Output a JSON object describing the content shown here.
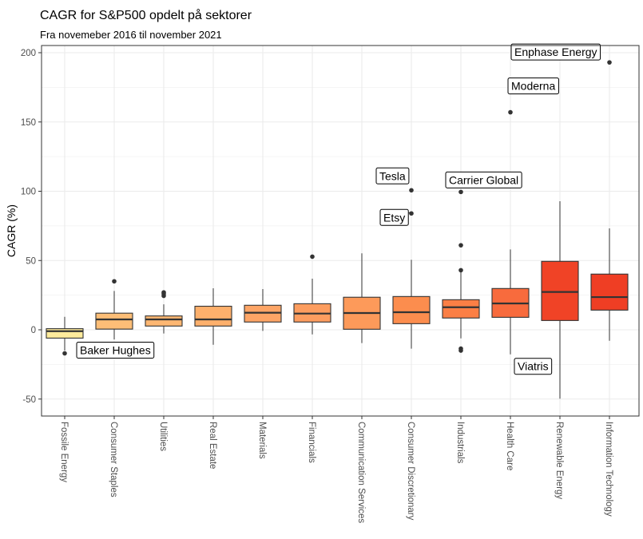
{
  "chart_data": {
    "type": "boxplot",
    "title": "CAGR for S&P500 opdelt på sektorer",
    "subtitle": "Fra novemeber 2016 til november 2021",
    "xlabel": "",
    "ylabel": "CAGR (%)",
    "ylim": [
      -60,
      208
    ],
    "yticks": [
      -50,
      0,
      50,
      100,
      150,
      200
    ],
    "grid": true,
    "categories": [
      "Fossile Energy",
      "Consumer Staples",
      "Utilities",
      "Real Estate",
      "Materials",
      "Financials",
      "Communication Services",
      "Consumer Discretionary",
      "Industrials",
      "Health Care",
      "Renewable Energy",
      "Information Technology"
    ],
    "colors": [
      "#FFEB9C",
      "#FDBE77",
      "#FDB772",
      "#FDB06C",
      "#FDA566",
      "#FD9D5F",
      "#FD9A5A",
      "#FC8D4E",
      "#FB7F45",
      "#F86B3D",
      "#F04326",
      "#EF3E24"
    ],
    "boxes": [
      {
        "lower": -15,
        "q1": -6,
        "median": -1,
        "q3": 0.8,
        "upper": 9.4,
        "outliers": [
          -17
        ]
      },
      {
        "lower": -7,
        "q1": 0.5,
        "median": 7.5,
        "q3": 12,
        "upper": 28,
        "outliers": [
          35
        ]
      },
      {
        "lower": -2.7,
        "q1": 2.7,
        "median": 7.5,
        "q3": 10,
        "upper": 18.4,
        "outliers": [
          24.5,
          26,
          27
        ]
      },
      {
        "lower": -10.8,
        "q1": 2.7,
        "median": 7.5,
        "q3": 17,
        "upper": 30,
        "outliers": []
      },
      {
        "lower": -0.8,
        "q1": 5.6,
        "median": 12.3,
        "q3": 17.7,
        "upper": 29.4,
        "outliers": []
      },
      {
        "lower": -3.3,
        "q1": 5.6,
        "median": 11.7,
        "q3": 18.8,
        "upper": 36.9,
        "outliers": [
          52.8
        ]
      },
      {
        "lower": -9.6,
        "q1": 0.4,
        "median": 12.1,
        "q3": 23.5,
        "upper": 55.2,
        "outliers": []
      },
      {
        "lower": -13.6,
        "q1": 4.4,
        "median": 12.7,
        "q3": 24,
        "upper": 50.5,
        "outliers": [
          84,
          100.7
        ]
      },
      {
        "lower": -6.2,
        "q1": 8.5,
        "median": 16.3,
        "q3": 21.7,
        "upper": 42,
        "outliers": [
          -13.6,
          -15,
          43,
          61,
          99.5
        ]
      },
      {
        "lower": -17.7,
        "q1": 9,
        "median": 19,
        "q3": 29.8,
        "upper": 58,
        "outliers": [
          157
        ]
      },
      {
        "lower": -49.7,
        "q1": 6.7,
        "median": 27.3,
        "q3": 49.4,
        "upper": 92.8,
        "outliers": []
      },
      {
        "lower": -7.9,
        "q1": 14.2,
        "median": 23.6,
        "q3": 40.2,
        "upper": 73.2,
        "outliers": [
          193
        ]
      }
    ],
    "annotations": [
      {
        "text": "Baker Hughes",
        "category": "Fossile Energy",
        "value": -17
      },
      {
        "text": "Tesla",
        "category": "Consumer Discretionary",
        "value": 100.7
      },
      {
        "text": "Etsy",
        "category": "Consumer Discretionary",
        "value": 84
      },
      {
        "text": "Carrier Global",
        "category": "Industrials",
        "value": 99.5
      },
      {
        "text": "Moderna",
        "category": "Health Care",
        "value": 157
      },
      {
        "text": "Enphase Energy",
        "category": "Information Technology",
        "value": 193
      },
      {
        "text": "Viatris",
        "category": "Health Care",
        "value": -17.7
      }
    ]
  }
}
